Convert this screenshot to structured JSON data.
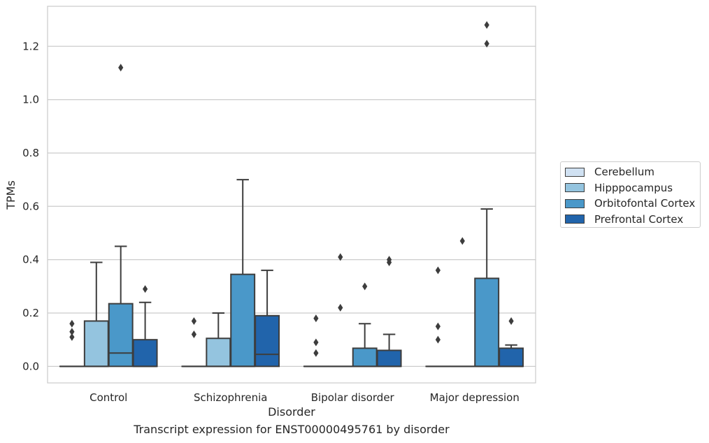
{
  "chart_data": {
    "type": "box",
    "caption": "Transcript expression for ENST00000495761 by disorder",
    "xlabel": "Disorder",
    "ylabel": "TPMs",
    "ylim": [
      -0.062,
      1.35
    ],
    "yticks": [
      0.0,
      0.2,
      0.4,
      0.6,
      0.8,
      1.0,
      1.2
    ],
    "ytick_labels": [
      "0.0",
      "0.2",
      "0.4",
      "0.6",
      "0.8",
      "1.0",
      "1.2"
    ],
    "grid": true,
    "legend_position": "right",
    "categories": [
      "Control",
      "Schizophrenia",
      "Bipolar disorder",
      "Major depression"
    ],
    "series": [
      {
        "name": "Cerebellum",
        "color": "#d0e1f2",
        "boxes": [
          {
            "q1": 0,
            "median": 0,
            "q3": 0,
            "whisker_low": 0,
            "whisker_high": 0,
            "outliers": [
              0.11,
              0.13,
              0.16
            ]
          },
          {
            "q1": 0,
            "median": 0,
            "q3": 0,
            "whisker_low": 0,
            "whisker_high": 0,
            "outliers": [
              0.12,
              0.17
            ]
          },
          {
            "q1": 0,
            "median": 0,
            "q3": 0,
            "whisker_low": 0,
            "whisker_high": 0,
            "outliers": [
              0.05,
              0.09,
              0.18
            ]
          },
          {
            "q1": 0,
            "median": 0,
            "q3": 0,
            "whisker_low": 0,
            "whisker_high": 0,
            "outliers": [
              0.1,
              0.15,
              0.36
            ]
          }
        ]
      },
      {
        "name": "Hipppocampus",
        "color": "#94c4df",
        "boxes": [
          {
            "q1": 0,
            "median": 0,
            "q3": 0.17,
            "whisker_low": 0,
            "whisker_high": 0.39,
            "outliers": []
          },
          {
            "q1": 0,
            "median": 0,
            "q3": 0.105,
            "whisker_low": 0,
            "whisker_high": 0.2,
            "outliers": []
          },
          {
            "q1": 0,
            "median": 0,
            "q3": 0,
            "whisker_low": 0,
            "whisker_high": 0,
            "outliers": [
              0.22,
              0.41
            ]
          },
          {
            "q1": 0,
            "median": 0,
            "q3": 0,
            "whisker_low": 0,
            "whisker_high": 0,
            "outliers": [
              0.47
            ]
          }
        ]
      },
      {
        "name": "Orbitofontal Cortex",
        "color": "#4a98c9",
        "boxes": [
          {
            "q1": 0,
            "median": 0.05,
            "q3": 0.235,
            "whisker_low": 0,
            "whisker_high": 0.45,
            "outliers": [
              1.12
            ]
          },
          {
            "q1": 0,
            "median": 0,
            "q3": 0.345,
            "whisker_low": 0,
            "whisker_high": 0.7,
            "outliers": []
          },
          {
            "q1": 0,
            "median": 0,
            "q3": 0.068,
            "whisker_low": 0,
            "whisker_high": 0.16,
            "outliers": [
              0.3
            ]
          },
          {
            "q1": 0,
            "median": 0,
            "q3": 0.33,
            "whisker_low": 0,
            "whisker_high": 0.59,
            "outliers": [
              1.21,
              1.28
            ]
          }
        ]
      },
      {
        "name": "Prefrontal Cortex",
        "color": "#2164ab",
        "boxes": [
          {
            "q1": 0,
            "median": 0,
            "q3": 0.1,
            "whisker_low": 0,
            "whisker_high": 0.24,
            "outliers": [
              0.29
            ]
          },
          {
            "q1": 0,
            "median": 0.045,
            "q3": 0.19,
            "whisker_low": 0,
            "whisker_high": 0.36,
            "outliers": []
          },
          {
            "q1": 0,
            "median": 0,
            "q3": 0.06,
            "whisker_low": 0,
            "whisker_high": 0.12,
            "outliers": [
              0.39,
              0.4
            ]
          },
          {
            "q1": 0,
            "median": 0,
            "q3": 0.068,
            "whisker_low": 0,
            "whisker_high": 0.08,
            "outliers": [
              0.17
            ]
          }
        ]
      }
    ]
  }
}
